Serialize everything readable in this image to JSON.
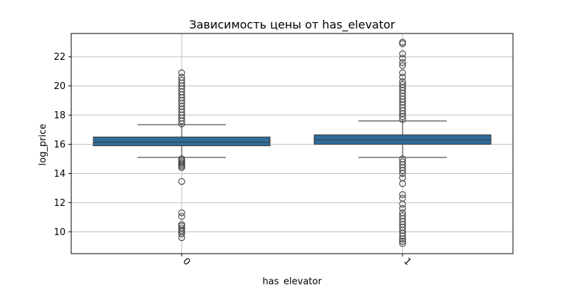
{
  "chart_data": {
    "type": "box",
    "title": "Зависимость цены от has_elevator",
    "xlabel": "has_elevator",
    "ylabel": "log_price",
    "ylim": [
      8.5,
      23.6
    ],
    "yticks": [
      10,
      12,
      14,
      16,
      18,
      20,
      22
    ],
    "grid": true,
    "box_color": "#2f6c9c",
    "categories": [
      "0",
      "1"
    ],
    "boxes": [
      {
        "category": "0",
        "whisker_low": 15.1,
        "q1": 15.9,
        "median": 16.15,
        "q3": 16.5,
        "whisker_high": 17.35,
        "outliers": [
          9.6,
          9.85,
          10.0,
          10.1,
          10.25,
          10.4,
          10.5,
          11.05,
          11.3,
          13.45,
          14.4,
          14.5,
          14.6,
          14.7,
          14.8,
          14.9,
          15.0,
          17.4,
          17.6,
          17.8,
          18.0,
          18.2,
          18.4,
          18.6,
          18.8,
          19.0,
          19.2,
          19.4,
          19.6,
          19.8,
          20.0,
          20.2,
          20.4,
          20.6,
          20.9
        ]
      },
      {
        "category": "1",
        "whisker_low": 15.1,
        "q1": 16.0,
        "median": 16.3,
        "q3": 16.65,
        "whisker_high": 17.6,
        "outliers": [
          9.2,
          9.35,
          9.5,
          9.7,
          9.9,
          10.1,
          10.3,
          10.5,
          10.7,
          10.9,
          11.1,
          11.3,
          11.6,
          11.9,
          12.3,
          12.55,
          13.3,
          13.7,
          14.0,
          14.2,
          14.4,
          14.6,
          14.8,
          15.0,
          17.7,
          17.9,
          18.1,
          18.3,
          18.5,
          18.7,
          18.9,
          19.1,
          19.3,
          19.5,
          19.7,
          19.9,
          20.1,
          20.3,
          20.6,
          20.9,
          21.4,
          21.6,
          21.9,
          22.2,
          22.9,
          23.0
        ]
      }
    ]
  }
}
